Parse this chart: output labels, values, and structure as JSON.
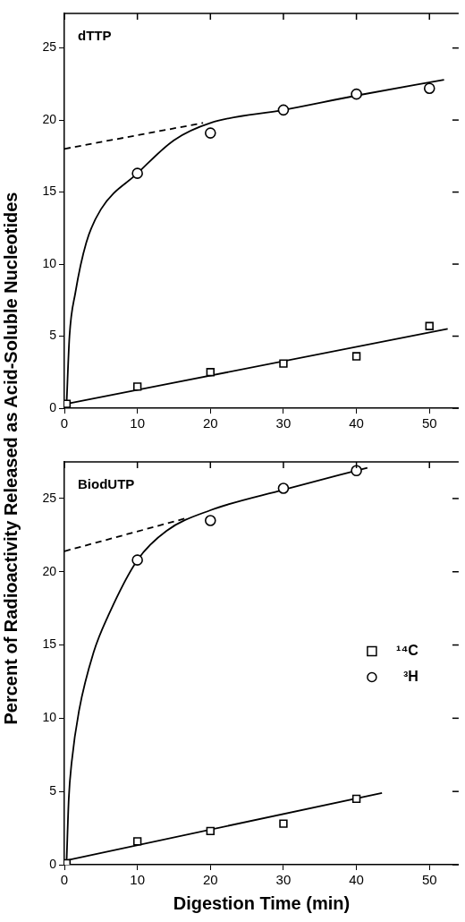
{
  "chart_data": [
    {
      "type": "scatter",
      "title": "dTTP",
      "ylabel": "Percent of Radioactivity Released as Acid-Soluble Nucleotides",
      "xlim": [
        0,
        54
      ],
      "xticks": [
        0,
        10,
        20,
        30,
        40,
        50
      ],
      "ylim": [
        0,
        27.4
      ],
      "yticks": [
        0,
        5,
        10,
        15,
        20,
        25
      ],
      "legend": false,
      "series": [
        {
          "type": "scatter",
          "marker": "circle",
          "color": "#000000",
          "x": [
            10,
            20,
            30,
            40,
            50
          ],
          "values": [
            16.3,
            19.1,
            20.7,
            21.8,
            22.2
          ]
        },
        {
          "type": "scatter",
          "marker": "square",
          "color": "#000000",
          "x": [
            0.3,
            10,
            20,
            30,
            40,
            50
          ],
          "values": [
            0.3,
            1.5,
            2.5,
            3.1,
            3.6,
            5.7
          ]
        },
        {
          "type": "line",
          "line_style": "solid",
          "color": "#000000",
          "x": [
            0.3,
            0.7,
            1.5,
            3,
            5,
            10,
            15,
            20,
            30,
            40,
            52
          ],
          "values": [
            0.3,
            5,
            8,
            11.5,
            13.8,
            16.3,
            18.6,
            19.8,
            20.7,
            21.7,
            22.8
          ]
        },
        {
          "type": "line",
          "line_style": "dashed",
          "color": "#000000",
          "x": [
            0,
            19
          ],
          "values": [
            18,
            19.8
          ]
        },
        {
          "type": "line",
          "line_style": "solid",
          "color": "#000000",
          "x": [
            0.3,
            52.5
          ],
          "values": [
            0.3,
            5.5
          ]
        }
      ]
    },
    {
      "type": "scatter",
      "title": "BiodUTP",
      "xlabel": "Digestion Time (min)",
      "xlim": [
        0,
        54
      ],
      "xticks": [
        0,
        10,
        20,
        30,
        40,
        50
      ],
      "ylim": [
        0,
        27.5
      ],
      "yticks": [
        0,
        5,
        10,
        15,
        20,
        25
      ],
      "legend": "right",
      "series": [
        {
          "type": "scatter",
          "name": "¹⁴C",
          "marker": "square",
          "color": "#000000",
          "x": [
            0.3,
            10,
            20,
            30,
            40
          ],
          "values": [
            0.1,
            1.6,
            2.3,
            2.8,
            4.5
          ]
        },
        {
          "type": "scatter",
          "name": "³H",
          "marker": "circle",
          "color": "#000000",
          "x": [
            10,
            20,
            30,
            40
          ],
          "values": [
            20.8,
            23.5,
            25.7,
            26.9
          ]
        },
        {
          "type": "line",
          "line_style": "solid",
          "color": "#000000",
          "x": [
            0.3,
            0.6,
            1,
            2,
            4,
            6,
            10,
            14,
            20,
            30,
            41.5
          ],
          "values": [
            0.2,
            4.5,
            7,
            10.5,
            14.5,
            17,
            20.8,
            22.8,
            24.2,
            25.6,
            27.1
          ]
        },
        {
          "type": "line",
          "line_style": "dashed",
          "color": "#000000",
          "x": [
            0,
            17
          ],
          "values": [
            21.4,
            23.7
          ]
        },
        {
          "type": "line",
          "line_style": "solid",
          "color": "#000000",
          "x": [
            0.3,
            43.5
          ],
          "values": [
            0.3,
            4.9
          ]
        }
      ]
    }
  ]
}
